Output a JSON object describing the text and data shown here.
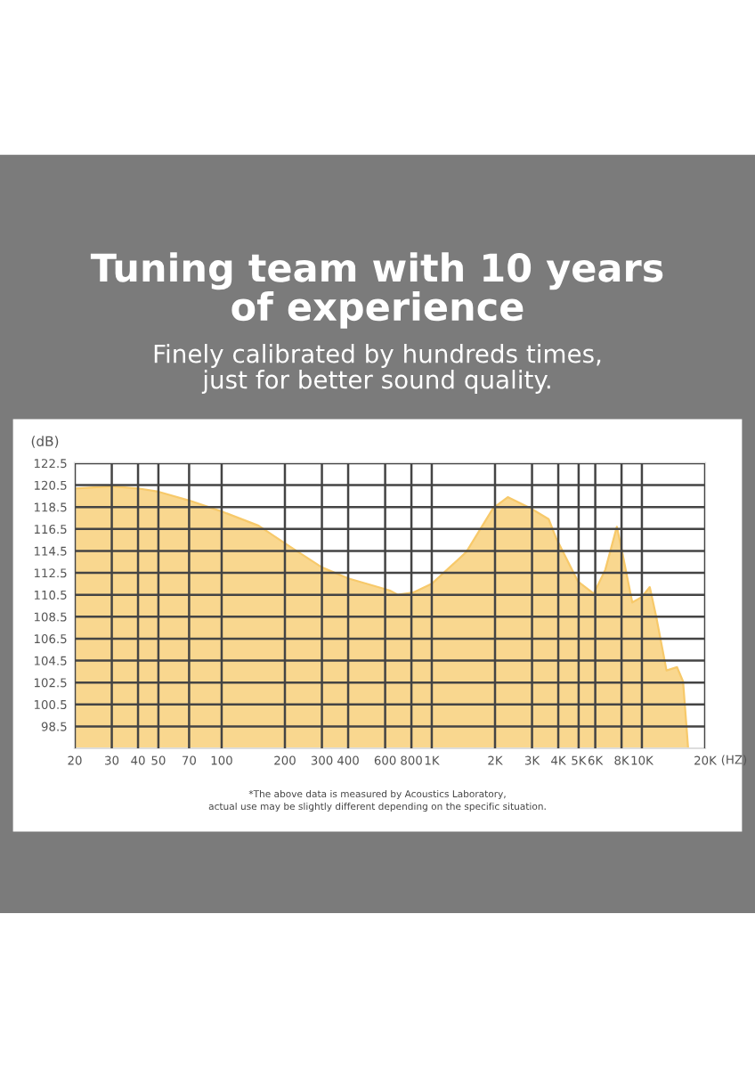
{
  "chart_data": {
    "type": "area",
    "title": "Tuning team with 10 years\nof experience",
    "subtitle": "Finely calibrated by hundreds times,\njust for better sound quality.",
    "xlabel": "(HZ)",
    "ylabel": "(dB)",
    "log": "x",
    "annotations": [
      "*The above data is measured by Acoustics Laboratory,",
      "actual use may be slightly different depending on the specific situation."
    ],
    "x": [
      20,
      30,
      40,
      50,
      70,
      100,
      150,
      200,
      300,
      400,
      630,
      690,
      815,
      1000,
      1460,
      1960,
      2300,
      2950,
      3600,
      3900,
      4970,
      5900,
      6700,
      7600,
      7900,
      9000,
      10000,
      10900,
      11700,
      13100,
      14700,
      15700,
      16600
    ],
    "series": [
      {
        "color": "#f7c96a",
        "values": [
          120.2,
          120.4,
          120.2,
          119.9,
          119.1,
          118.1,
          116.8,
          115.2,
          113.0,
          112.0,
          110.9,
          110.5,
          110.7,
          111.5,
          114.4,
          118.4,
          119.4,
          118.4,
          117.4,
          115.7,
          111.7,
          110.6,
          112.8,
          116.7,
          115.2,
          109.8,
          110.3,
          111.2,
          108.5,
          103.6,
          103.9,
          102.6,
          96.5
        ]
      }
    ],
    "xlim": [
      20,
      20000
    ],
    "ylim": [
      96.5,
      122.5
    ],
    "xticks": [
      20,
      30,
      40,
      50,
      70,
      100,
      200,
      300,
      400,
      600,
      800,
      {
        "value": 1000,
        "label": "1K"
      },
      {
        "value": 2000,
        "label": "2K"
      },
      {
        "value": 3000,
        "label": "3K"
      },
      {
        "value": 4000,
        "label": "4K"
      },
      {
        "value": 5000,
        "label": "5K"
      },
      {
        "value": 6000,
        "label": "6K"
      },
      {
        "value": 8000,
        "label": "8K"
      },
      {
        "value": 10000,
        "label": "10K"
      },
      {
        "value": 20000,
        "label": "20K"
      }
    ],
    "yticks": [
      98.5,
      100.5,
      102.5,
      104.5,
      106.5,
      108.5,
      110.5,
      112.5,
      114.5,
      116.5,
      118.5,
      120.5,
      122.5
    ],
    "grid": true
  }
}
